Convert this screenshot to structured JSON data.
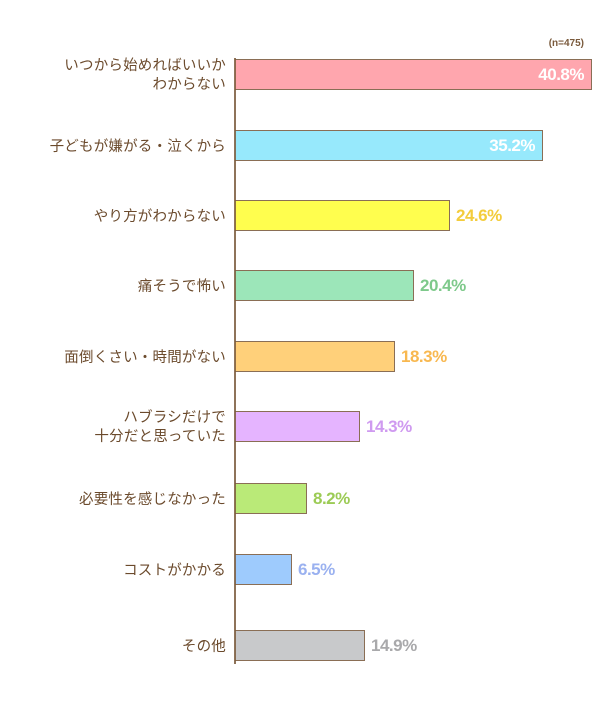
{
  "chart": {
    "sample_size_label": "(n=475)"
  },
  "rows": [
    {
      "label": "いつから始めればいいか\nわからない",
      "value_label": "40.8%",
      "color": "#ffa6ae",
      "value_color": "#ffffff"
    },
    {
      "label": "子どもが嫌がる・泣くから",
      "value_label": "35.2%",
      "color": "#97e9fc",
      "value_color": "#ffffff"
    },
    {
      "label": "やり方がわからない",
      "value_label": "24.6%",
      "color": "#fffe4e",
      "value_color": "#f3cc3c"
    },
    {
      "label": "痛そうで怖い",
      "value_label": "20.4%",
      "color": "#9ce6b9",
      "value_color": "#7ec98b"
    },
    {
      "label": "面倒くさい・時間がない",
      "value_label": "18.3%",
      "color": "#ffd07a",
      "value_color": "#f8b850"
    },
    {
      "label": "ハブラシだけで\n十分だと思っていた",
      "value_label": "14.3%",
      "color": "#e5b4ff",
      "value_color": "#cf9af0"
    },
    {
      "label": "必要性を感じなかった",
      "value_label": "8.2%",
      "color": "#baea78",
      "value_color": "#9ccb55"
    },
    {
      "label": "コストがかかる",
      "value_label": "6.5%",
      "color": "#9ecbfd",
      "value_color": "#9ab1f0"
    },
    {
      "label": "その他",
      "value_label": "14.9%",
      "color": "#c8c9cb",
      "value_color": "#a9a9ab"
    }
  ],
  "chart_data": {
    "type": "bar",
    "orientation": "horizontal",
    "title": "",
    "annotation": "(n=475)",
    "categories": [
      "いつから始めればいいかわからない",
      "子どもが嫌がる・泣くから",
      "やり方がわからない",
      "痛そうで怖い",
      "面倒くさい・時間がない",
      "ハブラシだけで十分だと思っていた",
      "必要性を感じなかった",
      "コストがかかる",
      "その他"
    ],
    "values": [
      40.8,
      35.2,
      24.6,
      20.4,
      18.3,
      14.3,
      8.2,
      6.5,
      14.9
    ],
    "unit": "%",
    "xlabel": "",
    "ylabel": "",
    "grid": false,
    "legend": false,
    "colors": [
      "#ffa6ae",
      "#97e9fc",
      "#fffe4e",
      "#9ce6b9",
      "#ffd07a",
      "#e5b4ff",
      "#baea78",
      "#9ecbfd",
      "#c8c9cb"
    ]
  }
}
